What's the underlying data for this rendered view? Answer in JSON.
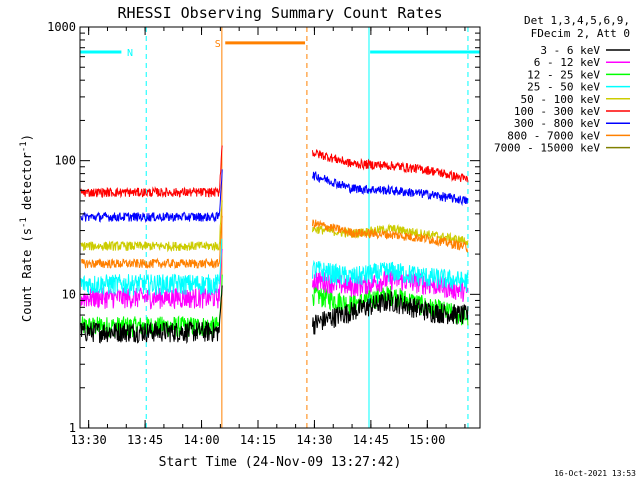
{
  "chart_data": {
    "type": "line",
    "title": "RHESSI Observing Summary Count Rates",
    "xlabel": "Start Time (24-Nov-09 13:27:42)",
    "ylabel_main": "Count Rate (s",
    "ylabel_sup1": "-1",
    "ylabel_mid": " detector",
    "ylabel_sup2": "-1",
    "ylabel_end": ")",
    "timestamp": "16-Oct-2021 13:53",
    "x_start_min": 807.7,
    "xlim_min": [
      807.7,
      914.0
    ],
    "ylim": [
      1,
      1000
    ],
    "yscale": "log",
    "xticks": [
      {
        "min": 810,
        "label": "13:30"
      },
      {
        "min": 825,
        "label": "13:45"
      },
      {
        "min": 840,
        "label": "14:00"
      },
      {
        "min": 855,
        "label": "14:15"
      },
      {
        "min": 870,
        "label": "14:30"
      },
      {
        "min": 885,
        "label": "14:45"
      },
      {
        "min": 900,
        "label": "15:00"
      }
    ],
    "yticks": [
      {
        "v": 1,
        "label": "1"
      },
      {
        "v": 10,
        "label": "10"
      },
      {
        "v": 100,
        "label": "100"
      },
      {
        "v": 1000,
        "label": "1000"
      }
    ],
    "legend": {
      "header1": "Det 1,3,4,5,6,9,",
      "header2": "FDecim 2, Att 0",
      "position": "right"
    },
    "series": [
      {
        "name": "3 - 6 keV",
        "color": "#000000",
        "before": 5.3,
        "after": [
          6.0,
          7.5,
          9.0,
          7.5,
          7.0
        ]
      },
      {
        "name": "6 - 12 keV",
        "color": "#ff00ff",
        "before": 9.5,
        "after": [
          13.0,
          11.5,
          13.0,
          12.0,
          10.5
        ]
      },
      {
        "name": "12 - 25 keV",
        "color": "#00ff00",
        "before": 5.8,
        "after": [
          10.0,
          8.5,
          10.0,
          8.0,
          6.8
        ]
      },
      {
        "name": "25 - 50 keV",
        "color": "#00ffff",
        "before": 12.0,
        "after": [
          15.5,
          13.5,
          15.0,
          13.5,
          12.5
        ]
      },
      {
        "name": "50 - 100 keV",
        "color": "#cccc00",
        "before": 23.0,
        "after": [
          31.0,
          28.5,
          31.0,
          28.0,
          25.0
        ]
      },
      {
        "name": "100 - 300 keV",
        "color": "#ff0000",
        "before": 58.0,
        "after": [
          115.0,
          95.0,
          92.0,
          85.0,
          72.0
        ]
      },
      {
        "name": "300 - 800 keV",
        "color": "#0000ff",
        "before": 38.0,
        "after": [
          78.0,
          62.0,
          60.0,
          56.0,
          50.0
        ]
      },
      {
        "name": "800 - 7000 keV",
        "color": "#ff8000",
        "before": 17.0,
        "after": [
          34.0,
          29.0,
          28.0,
          26.0,
          22.5
        ]
      },
      {
        "name": "7000 - 15000 keV",
        "color": "#808000",
        "before": null,
        "after": null
      }
    ],
    "flare_peak_min": 845.5,
    "data_gap_min": [
      846,
      869
    ],
    "night_bars": [
      {
        "x0": 807.7,
        "x1": 818.7,
        "y": 650,
        "color": "#00ffff",
        "label": "N",
        "label_min": 821.0,
        "dashed_min": 825.3
      },
      {
        "x0": 884.8,
        "x1": 914.0,
        "y": 650,
        "color": "#00ffff",
        "label": "",
        "dashed_min": 910.8
      }
    ],
    "saa_bar": {
      "x0": 846.3,
      "x1": 867.5,
      "y": 760,
      "color": "#ff8000",
      "label": "S",
      "label_min": 844.3,
      "dashed_min": 868.0
    },
    "vertical_lines": [
      {
        "min": 825.3,
        "color": "#00ffff",
        "dashed": true
      },
      {
        "min": 884.5,
        "color": "#00ffff",
        "dashed": false
      },
      {
        "min": 910.8,
        "color": "#00ffff",
        "dashed": true
      },
      {
        "min": 845.4,
        "color": "#ff8000",
        "dashed": false
      },
      {
        "min": 868.0,
        "color": "#ff8000",
        "dashed": true
      }
    ]
  }
}
